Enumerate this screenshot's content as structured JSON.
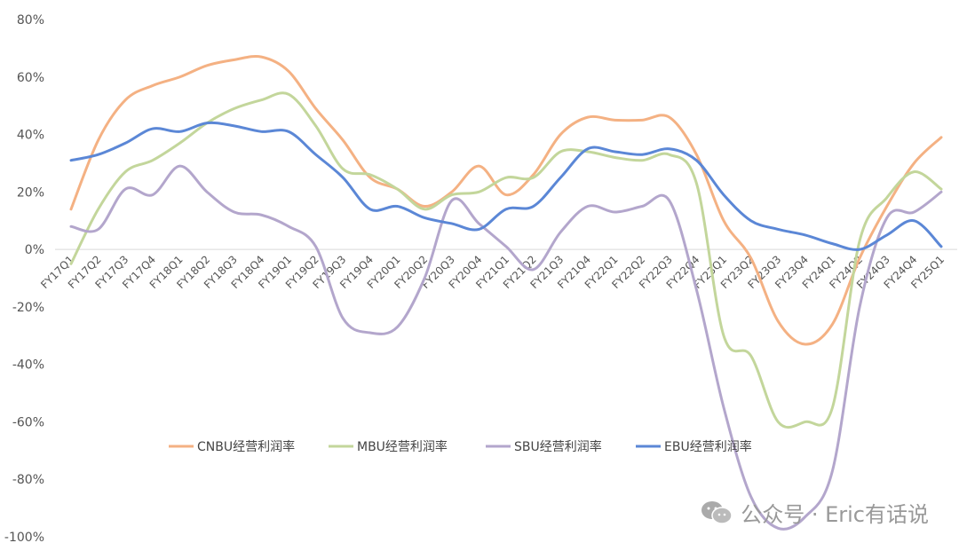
{
  "chart_data": {
    "type": "line",
    "title": "",
    "xlabel": "",
    "ylabel": "",
    "ylim": [
      -100,
      80
    ],
    "yticks": [
      "80%",
      "60%",
      "40%",
      "20%",
      "0%",
      "-20%",
      "-40%",
      "-60%",
      "-80%",
      "-100%"
    ],
    "ytick_values": [
      80,
      60,
      40,
      20,
      0,
      -20,
      -40,
      -60,
      -80,
      -100
    ],
    "grid": "zero line only",
    "legend_position": "lower-center",
    "categories": [
      "FY17Q1",
      "FY17Q2",
      "FY17Q3",
      "FY17Q4",
      "FY18Q1",
      "FY18Q2",
      "FY18Q3",
      "FY18Q4",
      "FY19Q1",
      "FY19Q2",
      "FY19Q3",
      "FY19Q4",
      "FY20Q1",
      "FY20Q2",
      "FY20Q3",
      "FY20Q4",
      "FY21Q1",
      "FY21Q2",
      "FY21Q3",
      "FY21Q4",
      "FY22Q1",
      "FY22Q2",
      "FY22Q3",
      "FY22Q4",
      "FY23Q1",
      "FY23Q2",
      "FY23Q3",
      "FY23Q4",
      "FY24Q1",
      "FY24Q2",
      "FY24Q3",
      "FY24Q4",
      "FY25Q1"
    ],
    "series": [
      {
        "name": "CNBU经营利润率",
        "color": "#F4B183",
        "values": [
          14,
          38,
          52,
          57,
          60,
          64,
          66,
          67,
          62,
          49,
          38,
          25,
          21,
          15,
          20,
          29,
          19,
          26,
          40,
          46,
          45,
          45,
          46,
          33,
          10,
          -3,
          -25,
          -33,
          -26,
          -3,
          15,
          30,
          39
        ]
      },
      {
        "name": "MBU经营利润率",
        "color": "#C3D69B",
        "values": [
          -5,
          14,
          27,
          31,
          37,
          44,
          49,
          52,
          54,
          43,
          28,
          26,
          21,
          14,
          19,
          20,
          25,
          25,
          34,
          34,
          32,
          31,
          33,
          23,
          -30,
          -37,
          -60,
          -60,
          -55,
          3,
          18,
          27,
          21
        ]
      },
      {
        "name": "SBU经营利润率",
        "color": "#B3A6CC",
        "values": [
          8,
          7,
          21,
          19,
          29,
          20,
          13,
          12,
          8,
          1,
          -24,
          -29,
          -27,
          -10,
          17,
          9,
          1,
          -7,
          6,
          15,
          13,
          15,
          17,
          -14,
          -55,
          -86,
          -97,
          -93,
          -77,
          -20,
          11,
          13,
          20
        ]
      },
      {
        "name": "EBU经营利润率",
        "color": "#5B87D6",
        "values": [
          31,
          33,
          37,
          42,
          41,
          44,
          43,
          41,
          41,
          33,
          25,
          14,
          15,
          11,
          9,
          7,
          14,
          15,
          25,
          35,
          34,
          33,
          35,
          31,
          19,
          10,
          7,
          5,
          2,
          0,
          5,
          10,
          1
        ]
      }
    ]
  },
  "watermark": {
    "text": "公众号 · Eric有话说"
  }
}
